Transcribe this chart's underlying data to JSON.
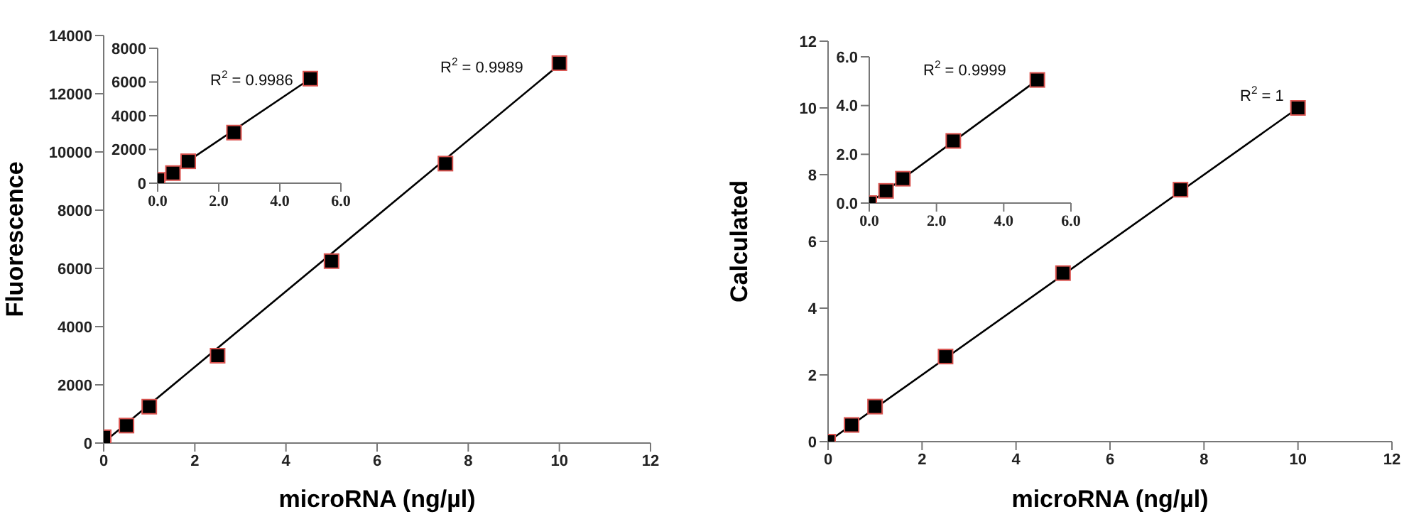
{
  "chart_data": [
    {
      "type": "scatter",
      "xlabel": "microRNA (ng/µl)",
      "ylabel": "Fluorescence",
      "xlim": [
        0,
        12
      ],
      "ylim": [
        0,
        14000
      ],
      "xticks": [
        0,
        2,
        4,
        6,
        8,
        10,
        12
      ],
      "yticks": [
        0,
        2000,
        4000,
        6000,
        8000,
        10000,
        12000,
        14000
      ],
      "annotations": [
        "R$^{2}$ = 0.9989"
      ],
      "series": [
        {
          "type": "line",
          "color": "#000000",
          "marker": "none",
          "x": [
            0.1,
            10
          ],
          "values": [
            150,
            13000
          ]
        },
        {
          "color": "#000000",
          "marker": "square",
          "x": [
            0,
            0.5,
            1,
            2.5,
            5,
            7.5,
            10
          ],
          "values": [
            200,
            600,
            1250,
            3000,
            6250,
            9600,
            13050
          ]
        }
      ]
    },
    {
      "type": "scatter",
      "xlim": [
        0,
        6
      ],
      "ylim": [
        0,
        8000
      ],
      "xticks": [
        {
          "value": 0,
          "label": "0.0"
        },
        {
          "value": 2,
          "label": "2.0"
        },
        {
          "value": 4,
          "label": "4.0"
        },
        {
          "value": 6,
          "label": "6.0"
        }
      ],
      "yticks": [
        0,
        2000,
        4000,
        6000,
        8000
      ],
      "annotations": [
        "R$^{2}$ = 0.9986"
      ],
      "series": [
        {
          "type": "line",
          "color": "#000000",
          "marker": "none",
          "x": [
            0,
            5
          ],
          "values": [
            100,
            6200
          ]
        },
        {
          "color": "#000000",
          "marker": "square",
          "x": [
            0,
            0.5,
            1,
            2.5,
            5
          ],
          "values": [
            200,
            600,
            1300,
            3000,
            6200
          ]
        }
      ]
    },
    {
      "type": "scatter",
      "xlabel": "microRNA (ng/µl)",
      "ylabel": "Calculated",
      "xlim": [
        0,
        12
      ],
      "ylim": [
        0,
        12
      ],
      "xticks": [
        0,
        2,
        4,
        6,
        8,
        10,
        12
      ],
      "yticks": [
        0,
        2,
        4,
        6,
        8,
        10,
        12
      ],
      "annotations": [
        "R$^{2}$ = 1"
      ],
      "series": [
        {
          "type": "line",
          "color": "#000000",
          "marker": "none",
          "x": [
            0,
            10
          ],
          "values": [
            0,
            10
          ]
        },
        {
          "color": "#000000",
          "marker": "square",
          "x": [
            0,
            0.5,
            1,
            2.5,
            5,
            7.5,
            10
          ],
          "values": [
            0,
            0.5,
            1.05,
            2.55,
            5.05,
            7.55,
            10
          ]
        }
      ]
    },
    {
      "type": "scatter",
      "xlim": [
        0,
        6
      ],
      "ylim": [
        0,
        6
      ],
      "xticks": [
        {
          "value": 0,
          "label": "0.0"
        },
        {
          "value": 2,
          "label": "2.0"
        },
        {
          "value": 4,
          "label": "4.0"
        },
        {
          "value": 6,
          "label": "6.0"
        }
      ],
      "yticks": [
        {
          "value": 0,
          "label": "0.0"
        },
        {
          "value": 2,
          "label": "2.0"
        },
        {
          "value": 4,
          "label": "4.0"
        },
        {
          "value": 6,
          "label": "6.0"
        }
      ],
      "annotations": [
        "R$^{2}$ = 0.9999"
      ],
      "series": [
        {
          "type": "line",
          "color": "#000000",
          "marker": "none",
          "x": [
            0,
            5
          ],
          "values": [
            0,
            5.05
          ]
        },
        {
          "color": "#000000",
          "marker": "square",
          "x": [
            0,
            0.5,
            1,
            2.5,
            5
          ],
          "values": [
            0,
            0.5,
            1.0,
            2.55,
            5.05
          ]
        }
      ]
    }
  ]
}
